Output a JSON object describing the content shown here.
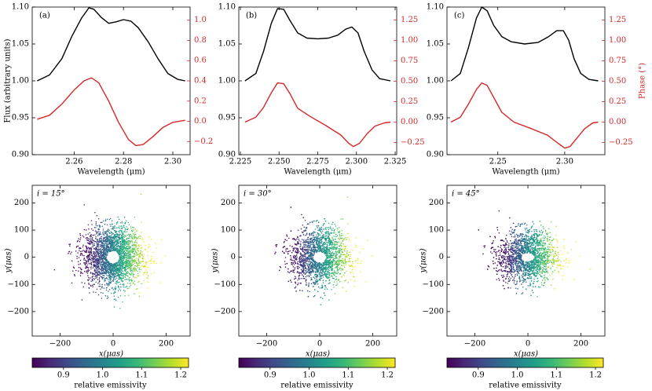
{
  "chart_data": {
    "type": "line",
    "colors": {
      "flux": "#000000",
      "phase": "#d62728",
      "axis": "#000000"
    },
    "spectra_panels": [
      {
        "label": "(a)",
        "xlabel": "Wavelength (μm)",
        "ylabel": "Flux (arbitrary units)",
        "y2label": "",
        "xlim": [
          2.243,
          2.307
        ],
        "ylim": [
          0.9,
          1.1
        ],
        "y2lim": [
          -0.33,
          1.13
        ],
        "xticks": [
          2.26,
          2.28,
          2.3
        ],
        "xtick_labels": [
          "2.26",
          "2.28",
          "2.30"
        ],
        "yticks": [
          0.9,
          0.95,
          1.0,
          1.05,
          1.1
        ],
        "ytick_labels": [
          "0.90",
          "0.95",
          "1.00",
          "1.05",
          "1.10"
        ],
        "y2ticks": [
          -0.2,
          0.0,
          0.2,
          0.4,
          0.6,
          0.8,
          1.0
        ],
        "y2tick_labels": [
          "−0.2",
          "0.0",
          "0.2",
          "0.4",
          "0.6",
          "0.8",
          "1.0"
        ],
        "series": [
          {
            "name": "Flux",
            "axis": "left",
            "x": [
              2.245,
              2.25,
              2.255,
              2.259,
              2.263,
              2.266,
              2.268,
              2.271,
              2.274,
              2.277,
              2.28,
              2.283,
              2.286,
              2.29,
              2.294,
              2.298,
              2.302,
              2.305
            ],
            "y": [
              1.0,
              1.008,
              1.03,
              1.06,
              1.085,
              1.099,
              1.097,
              1.086,
              1.078,
              1.08,
              1.083,
              1.081,
              1.072,
              1.053,
              1.03,
              1.01,
              1.002,
              1.0
            ]
          },
          {
            "name": "Phase",
            "axis": "right",
            "x": [
              2.245,
              2.25,
              2.255,
              2.26,
              2.264,
              2.267,
              2.27,
              2.274,
              2.278,
              2.282,
              2.285,
              2.288,
              2.292,
              2.296,
              2.3,
              2.305
            ],
            "y": [
              0.02,
              0.06,
              0.17,
              0.31,
              0.4,
              0.43,
              0.38,
              0.2,
              -0.01,
              -0.18,
              -0.24,
              -0.23,
              -0.15,
              -0.06,
              -0.01,
              0.01
            ]
          }
        ]
      },
      {
        "label": "(b)",
        "xlabel": "Wavelength (μm)",
        "ylabel": "",
        "y2label": "",
        "xlim": [
          2.224,
          2.326
        ],
        "ylim": [
          0.9,
          1.1
        ],
        "y2lim": [
          -0.4,
          1.41
        ],
        "xticks": [
          2.225,
          2.25,
          2.275,
          2.3,
          2.325
        ],
        "xtick_labels": [
          "2.225",
          "2.250",
          "2.275",
          "2.300",
          "2.325"
        ],
        "yticks": [
          0.9,
          0.95,
          1.0,
          1.05,
          1.1
        ],
        "ytick_labels": [
          "0.90",
          "0.95",
          "1.00",
          "1.05",
          "1.10"
        ],
        "y2ticks": [
          -0.25,
          0.0,
          0.25,
          0.5,
          0.75,
          1.0,
          1.25
        ],
        "y2tick_labels": [
          "−0.25",
          "0.00",
          "0.25",
          "0.50",
          "0.75",
          "1.00",
          "1.25"
        ],
        "series": [
          {
            "name": "Flux",
            "axis": "left",
            "x": [
              2.228,
              2.235,
              2.24,
              2.245,
              2.249,
              2.253,
              2.257,
              2.262,
              2.268,
              2.275,
              2.282,
              2.288,
              2.293,
              2.297,
              2.301,
              2.305,
              2.31,
              2.315,
              2.322
            ],
            "y": [
              1.0,
              1.01,
              1.04,
              1.078,
              1.098,
              1.097,
              1.082,
              1.065,
              1.058,
              1.057,
              1.058,
              1.062,
              1.07,
              1.073,
              1.065,
              1.04,
              1.015,
              1.003,
              1.0
            ]
          },
          {
            "name": "Phase",
            "axis": "right",
            "x": [
              2.228,
              2.235,
              2.24,
              2.245,
              2.249,
              2.253,
              2.257,
              2.262,
              2.27,
              2.28,
              2.29,
              2.295,
              2.298,
              2.302,
              2.307,
              2.312,
              2.318,
              2.322
            ],
            "y": [
              0.0,
              0.06,
              0.18,
              0.36,
              0.48,
              0.47,
              0.35,
              0.17,
              0.07,
              -0.04,
              -0.16,
              -0.26,
              -0.3,
              -0.26,
              -0.14,
              -0.05,
              -0.01,
              0.0
            ]
          }
        ]
      },
      {
        "label": "(c)",
        "xlabel": "Wavelength (μm)",
        "ylabel": "",
        "y2label": "Phase (°)",
        "xlim": [
          2.212,
          2.33
        ],
        "ylim": [
          0.9,
          1.1
        ],
        "y2lim": [
          -0.4,
          1.41
        ],
        "xticks": [
          2.25,
          2.3
        ],
        "xtick_labels": [
          "2.25",
          "2.30"
        ],
        "yticks": [
          0.9,
          0.95,
          1.0,
          1.05,
          1.1
        ],
        "ytick_labels": [
          "0.90",
          "0.95",
          "1.00",
          "1.05",
          "1.10"
        ],
        "y2ticks": [
          -0.25,
          0.0,
          0.25,
          0.5,
          0.75,
          1.0,
          1.25
        ],
        "y2tick_labels": [
          "−0.25",
          "0.00",
          "0.25",
          "0.50",
          "0.75",
          "1.00",
          "1.25"
        ],
        "series": [
          {
            "name": "Flux",
            "axis": "left",
            "x": [
              2.215,
              2.222,
              2.228,
              2.234,
              2.238,
              2.242,
              2.247,
              2.253,
              2.26,
              2.27,
              2.28,
              2.288,
              2.294,
              2.299,
              2.303,
              2.307,
              2.312,
              2.318,
              2.325
            ],
            "y": [
              1.0,
              1.01,
              1.045,
              1.085,
              1.1,
              1.095,
              1.075,
              1.06,
              1.053,
              1.05,
              1.052,
              1.06,
              1.068,
              1.068,
              1.055,
              1.03,
              1.01,
              1.002,
              1.0
            ]
          },
          {
            "name": "Phase",
            "axis": "right",
            "x": [
              2.215,
              2.222,
              2.228,
              2.234,
              2.238,
              2.242,
              2.247,
              2.253,
              2.262,
              2.275,
              2.287,
              2.295,
              2.3,
              2.304,
              2.309,
              2.315,
              2.321,
              2.325
            ],
            "y": [
              0.0,
              0.06,
              0.22,
              0.4,
              0.48,
              0.45,
              0.3,
              0.12,
              0.0,
              -0.08,
              -0.16,
              -0.26,
              -0.32,
              -0.3,
              -0.2,
              -0.08,
              -0.01,
              0.0
            ]
          }
        ]
      }
    ],
    "scatter_panels": [
      {
        "annotation": "i = 15°",
        "inclination": 15,
        "hole_rx": 24,
        "hole_ry": 23
      },
      {
        "annotation": "i = 30°",
        "inclination": 30,
        "hole_rx": 25,
        "hole_ry": 20
      },
      {
        "annotation": "i = 45°",
        "inclination": 45,
        "hole_rx": 25,
        "hole_ry": 16
      }
    ],
    "scatter_axes": {
      "type": "scatter",
      "xlabel": "x(μas)",
      "ylabel": "y(μas)",
      "xlim": [
        -305,
        290
      ],
      "ylim": [
        -290,
        265
      ],
      "xticks": [
        -200,
        0,
        200
      ],
      "xtick_labels": [
        "−200",
        "0",
        "200"
      ],
      "yticks": [
        -200,
        -100,
        0,
        100,
        200
      ],
      "ytick_labels": [
        "−200",
        "−100",
        "0",
        "100",
        "200"
      ],
      "color_variable": "relative emissivity",
      "points_per_panel": 2600
    },
    "colorbar": {
      "label": "relative emissivity",
      "range": [
        0.82,
        1.22
      ],
      "ticks": [
        0.9,
        1.0,
        1.1,
        1.2
      ],
      "tick_labels": [
        "0.9",
        "1.0",
        "1.1",
        "1.2"
      ],
      "colormap": "viridis"
    }
  }
}
